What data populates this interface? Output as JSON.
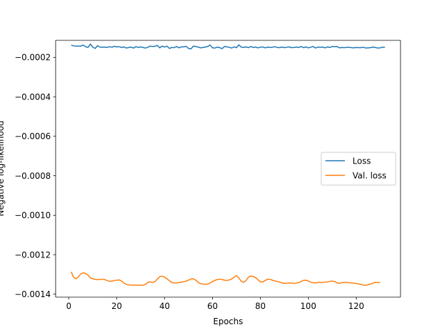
{
  "chart_data": {
    "type": "line",
    "xlabel": "Epochs",
    "ylabel": "Negative log-likelihood",
    "xlim": [
      -5.5,
      138.5
    ],
    "ylim": [
      -0.001415,
      -0.000114
    ],
    "xticks": [
      0,
      20,
      40,
      60,
      80,
      100,
      120
    ],
    "xtick_labels": [
      "0",
      "20",
      "40",
      "60",
      "80",
      "100",
      "120"
    ],
    "yticks": [
      -0.0002,
      -0.0004,
      -0.0006,
      -0.0008,
      -0.001,
      -0.0012,
      -0.0014
    ],
    "ytick_labels": [
      "−0.0002",
      "−0.0004",
      "−0.0006",
      "−0.0008",
      "−0.0010",
      "−0.0012",
      "−0.0014"
    ],
    "grid": false,
    "legend_position": "center-right",
    "x_start": 1,
    "x_step": 1,
    "series": [
      {
        "name": "Loss",
        "color": "#1f77b4",
        "values": [
          -0.000138,
          -0.000142,
          -0.000143,
          -0.000143,
          -0.000143,
          -0.000138,
          -0.000146,
          -0.00015,
          -0.000133,
          -0.000148,
          -0.000155,
          -0.000141,
          -0.000148,
          -0.000149,
          -0.000148,
          -0.00015,
          -0.000146,
          -0.000149,
          -0.000144,
          -0.000147,
          -0.000146,
          -0.00015,
          -0.000147,
          -0.000153,
          -0.00015,
          -0.000148,
          -0.000153,
          -0.000146,
          -0.00015,
          -0.000147,
          -0.00015,
          -0.000153,
          -0.000149,
          -0.000143,
          -0.000145,
          -0.000144,
          -0.00014,
          -0.000152,
          -0.000143,
          -0.000148,
          -0.000143,
          -0.000155,
          -0.00015,
          -0.000151,
          -0.000145,
          -0.000152,
          -0.000147,
          -0.000147,
          -0.000144,
          -0.000155,
          -0.000157,
          -0.000143,
          -0.000145,
          -0.000148,
          -0.000152,
          -0.00015,
          -0.000148,
          -0.000145,
          -0.000138,
          -0.000152,
          -0.000153,
          -0.000148,
          -0.000151,
          -0.000156,
          -0.000145,
          -0.000147,
          -0.000149,
          -0.000153,
          -0.000147,
          -0.000151,
          -0.000137,
          -0.000148,
          -0.00015,
          -0.000147,
          -0.000151,
          -0.000145,
          -0.00015,
          -0.000148,
          -0.000152,
          -0.000149,
          -0.000147,
          -0.000152,
          -0.000148,
          -0.00015,
          -0.000149,
          -0.000146,
          -0.00015,
          -0.000151,
          -0.000148,
          -0.000151,
          -0.000149,
          -0.000147,
          -0.000151,
          -0.00015,
          -0.000148,
          -0.00015,
          -0.000145,
          -0.000151,
          -0.000147,
          -0.000152,
          -0.000149,
          -0.000145,
          -0.000153,
          -0.000148,
          -0.000149,
          -0.000148,
          -0.000152,
          -0.000147,
          -0.00015,
          -0.000145,
          -0.000146,
          -0.000145,
          -0.000152,
          -0.00015,
          -0.000151,
          -0.00015,
          -0.000149,
          -0.000151,
          -0.000152,
          -0.00015,
          -0.000151,
          -0.000151,
          -0.000149,
          -0.000153,
          -0.000152,
          -0.000151,
          -0.000148,
          -0.00015,
          -0.000153,
          -0.000152,
          -0.000149,
          -0.000149
        ]
      },
      {
        "name": "Val. loss",
        "color": "#ff7f0e",
        "values": [
          -0.001287,
          -0.001315,
          -0.001322,
          -0.001313,
          -0.001297,
          -0.001292,
          -0.001295,
          -0.001303,
          -0.001318,
          -0.001322,
          -0.001325,
          -0.001326,
          -0.001326,
          -0.001324,
          -0.001326,
          -0.001331,
          -0.001335,
          -0.001334,
          -0.001331,
          -0.001329,
          -0.001328,
          -0.001333,
          -0.001344,
          -0.00135,
          -0.001353,
          -0.001354,
          -0.001354,
          -0.001354,
          -0.001355,
          -0.001354,
          -0.001355,
          -0.00135,
          -0.00134,
          -0.001338,
          -0.001341,
          -0.001336,
          -0.001323,
          -0.001311,
          -0.001309,
          -0.001314,
          -0.001322,
          -0.001332,
          -0.001341,
          -0.001343,
          -0.001343,
          -0.001341,
          -0.001339,
          -0.001337,
          -0.001334,
          -0.001329,
          -0.001323,
          -0.001322,
          -0.001329,
          -0.00134,
          -0.001347,
          -0.001349,
          -0.00135,
          -0.001349,
          -0.001344,
          -0.001336,
          -0.00133,
          -0.001326,
          -0.001324,
          -0.001326,
          -0.001329,
          -0.00133,
          -0.001328,
          -0.001323,
          -0.001314,
          -0.001306,
          -0.001318,
          -0.001335,
          -0.00134,
          -0.001331,
          -0.001314,
          -0.001308,
          -0.001311,
          -0.001316,
          -0.001327,
          -0.001338,
          -0.001338,
          -0.001331,
          -0.001324,
          -0.001325,
          -0.001329,
          -0.001333,
          -0.001335,
          -0.001339,
          -0.001343,
          -0.001345,
          -0.001344,
          -0.001343,
          -0.001344,
          -0.001346,
          -0.001343,
          -0.001342,
          -0.001336,
          -0.00133,
          -0.001329,
          -0.001333,
          -0.001339,
          -0.001342,
          -0.001343,
          -0.001341,
          -0.00134,
          -0.00134,
          -0.001339,
          -0.001338,
          -0.001335,
          -0.001334,
          -0.001336,
          -0.001343,
          -0.001345,
          -0.001342,
          -0.00134,
          -0.00134,
          -0.001342,
          -0.001343,
          -0.001344,
          -0.001346,
          -0.001348,
          -0.001351,
          -0.001354,
          -0.001355,
          -0.001352,
          -0.001349,
          -0.001344,
          -0.00134,
          -0.001341,
          -0.001342
        ]
      }
    ]
  }
}
